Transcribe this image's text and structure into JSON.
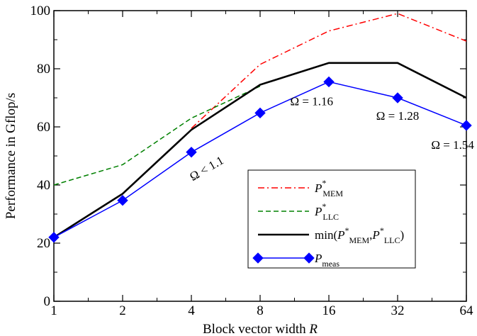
{
  "chart_data": {
    "type": "line",
    "xlabel": "Block vector width",
    "xlabel_var": "R",
    "ylabel": "Performance in Gflop/s",
    "categories": [
      "1",
      "2",
      "4",
      "8",
      "16",
      "32",
      "64"
    ],
    "ylim": [
      0,
      100
    ],
    "yticks": [
      "0",
      "20",
      "40",
      "60",
      "80",
      "100"
    ],
    "grid": false,
    "legend_position": "bottom-right",
    "series": [
      {
        "key": "mem",
        "legend": {
          "main": "P",
          "sup": "*",
          "sub": "MEM"
        },
        "color": "#ff0000",
        "style": "dash-dot",
        "values": [
          null,
          null,
          59.5,
          81.5,
          93.0,
          99.0,
          89.5
        ]
      },
      {
        "key": "llc",
        "legend": {
          "main": "P",
          "sup": "*",
          "sub": "LLC"
        },
        "color": "#008000",
        "style": "dashed",
        "values": [
          40.0,
          47.0,
          63.0,
          74.0,
          null,
          null,
          null
        ]
      },
      {
        "key": "min",
        "legend": {
          "prefix": "min(",
          "p1": "P",
          "sup1": "*",
          "sub1": "MEM",
          "comma": ",",
          "p2": "P",
          "sup2": "*",
          "sub2": "LLC",
          "suffix": ")"
        },
        "color": "#000000",
        "style": "solid",
        "values": [
          22.0,
          37.0,
          59.0,
          74.5,
          82.0,
          82.0,
          70.0
        ]
      },
      {
        "key": "meas",
        "legend": {
          "main": "P",
          "sub": "meas"
        },
        "color": "#0000ff",
        "style": "solid-diamond",
        "values": [
          22.0,
          34.7,
          51.3,
          64.8,
          75.5,
          70.0,
          60.5
        ]
      }
    ],
    "annotations": [
      {
        "text": "Ω < 1.1",
        "x_index": 2.25,
        "y": 44.5,
        "rotate": -30
      },
      {
        "text": "Ω = 1.16",
        "x_index": 3.75,
        "y": 67.5,
        "rotate": 0
      },
      {
        "text": "Ω = 1.28",
        "x_index": 5.0,
        "y": 62.5,
        "rotate": 0
      },
      {
        "text": "Ω = 1.54",
        "x_index": 5.8,
        "y": 52.5,
        "rotate": 0
      }
    ]
  }
}
